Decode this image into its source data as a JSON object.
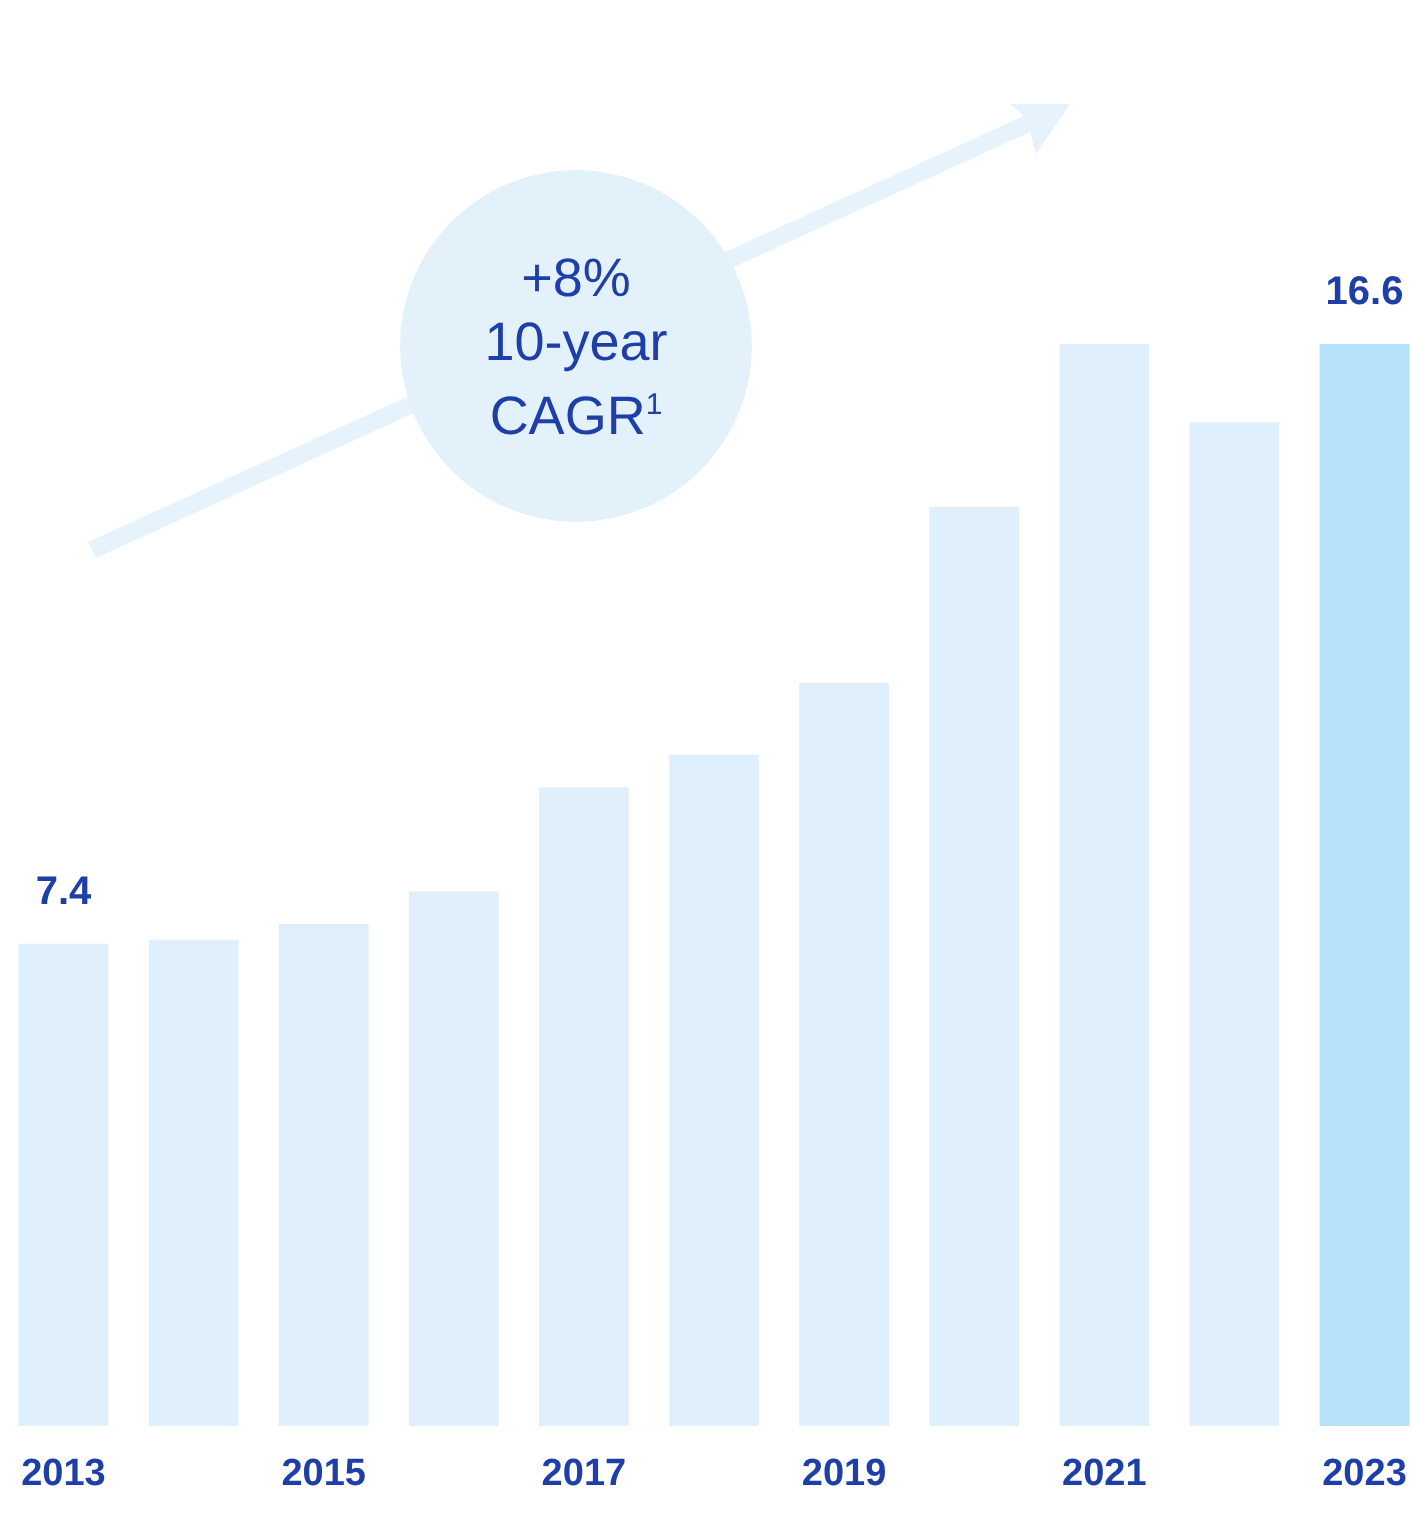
{
  "chart_data": {
    "type": "bar",
    "categories": [
      "2013",
      null,
      "2015",
      null,
      "2017",
      null,
      "2019",
      null,
      "2021",
      null,
      "2023"
    ],
    "values": [
      7.4,
      7.46,
      7.7,
      8.2,
      9.8,
      10.3,
      11.4,
      14.1,
      16.6,
      15.4,
      16.6
    ],
    "colors": [
      "#dff0fc",
      "#dff0fc",
      "#dff0fc",
      "#dff0fc",
      "#dff0fc",
      "#dff0fc",
      "#dff0fc",
      "#dff0fc",
      "#dff0fc",
      "#dff0fc",
      "#b5e1fb"
    ],
    "value_labels": [
      "7.4",
      null,
      null,
      null,
      null,
      null,
      null,
      null,
      null,
      null,
      "16.6"
    ],
    "annotations": [
      "+8%\n10-year\nCAGR$^{1}$"
    ],
    "grid": false
  }
}
